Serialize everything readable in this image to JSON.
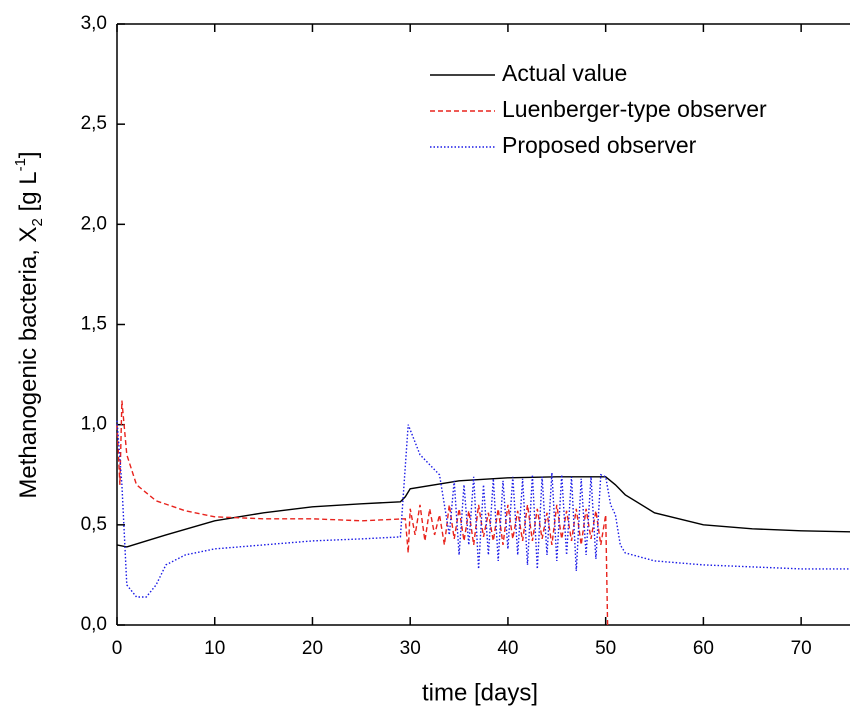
{
  "chart_data": {
    "type": "line",
    "xlabel": "time [days]",
    "ylabel": [
      "Methanogenic bacteria, X",
      "2",
      " [g L",
      "-1",
      "]"
    ],
    "xlim": [
      0,
      75
    ],
    "ylim": [
      0,
      3
    ],
    "xticks": [
      0,
      10,
      20,
      30,
      40,
      50,
      60,
      70
    ],
    "yticks": [
      {
        "value": 0,
        "label": "0,0"
      },
      {
        "value": 0.5,
        "label": "0,5"
      },
      {
        "value": 1,
        "label": "1,0"
      },
      {
        "value": 1.5,
        "label": "1,5"
      },
      {
        "value": 2,
        "label": "2,0"
      },
      {
        "value": 2.5,
        "label": "2,5"
      },
      {
        "value": 3,
        "label": "3,0"
      }
    ],
    "legend": "upper right",
    "series": [
      {
        "name": "Actual value",
        "color": "#000000",
        "dash": "solid",
        "x": [
          0,
          1,
          3,
          5,
          10,
          15,
          20,
          25,
          29,
          29.5,
          30,
          35,
          40,
          45,
          50,
          51,
          52,
          55,
          60,
          65,
          70,
          75
        ],
        "values": [
          0.4,
          0.39,
          0.42,
          0.45,
          0.52,
          0.56,
          0.59,
          0.605,
          0.615,
          0.64,
          0.68,
          0.72,
          0.735,
          0.74,
          0.74,
          0.7,
          0.65,
          0.56,
          0.5,
          0.48,
          0.47,
          0.465
        ]
      },
      {
        "name": "Luenberger-type observer",
        "color": "#e8231d",
        "dash": "dashed",
        "x": [
          0,
          0.3,
          0.5,
          1,
          2,
          4,
          7,
          10,
          15,
          20,
          25,
          29.5,
          29.8,
          30,
          30.5,
          31,
          31.5,
          32,
          32.5,
          33,
          33.5,
          34,
          34.5,
          35,
          35.5,
          36,
          36.5,
          37,
          37.5,
          38,
          38.5,
          39,
          39.5,
          40,
          40.5,
          41,
          41.5,
          42,
          42.5,
          43,
          43.5,
          44,
          44.5,
          45,
          45.5,
          46,
          46.5,
          47,
          47.5,
          48,
          48.5,
          49,
          49.5,
          50,
          50.2
        ],
        "values": [
          1.0,
          0.7,
          1.12,
          0.85,
          0.7,
          0.62,
          0.57,
          0.54,
          0.53,
          0.53,
          0.52,
          0.53,
          0.36,
          0.58,
          0.45,
          0.6,
          0.42,
          0.58,
          0.45,
          0.55,
          0.4,
          0.6,
          0.43,
          0.58,
          0.42,
          0.57,
          0.4,
          0.6,
          0.44,
          0.56,
          0.42,
          0.58,
          0.4,
          0.6,
          0.43,
          0.57,
          0.42,
          0.6,
          0.42,
          0.58,
          0.43,
          0.56,
          0.4,
          0.6,
          0.43,
          0.57,
          0.42,
          0.58,
          0.4,
          0.58,
          0.43,
          0.57,
          0.4,
          0.55,
          0.0
        ]
      },
      {
        "name": "Proposed observer",
        "color": "#1a1ae6",
        "dash": "dotted",
        "x": [
          0,
          0.5,
          1,
          2,
          3,
          4,
          5,
          7,
          10,
          15,
          20,
          25,
          29,
          29.8,
          31,
          33,
          34,
          34.5,
          35,
          35.5,
          36,
          36.5,
          37,
          37.5,
          38,
          38.5,
          39,
          39.5,
          40,
          40.5,
          41,
          41.5,
          42,
          42.5,
          43,
          43.5,
          44,
          44.5,
          45,
          45.5,
          46,
          46.5,
          47,
          47.5,
          48,
          48.5,
          49,
          49.5,
          50,
          50.5,
          51,
          51.5,
          52,
          55,
          60,
          65,
          70,
          75
        ],
        "values": [
          1.02,
          0.7,
          0.2,
          0.14,
          0.14,
          0.2,
          0.3,
          0.35,
          0.38,
          0.4,
          0.42,
          0.43,
          0.44,
          1.0,
          0.85,
          0.75,
          0.45,
          0.72,
          0.35,
          0.7,
          0.4,
          0.74,
          0.28,
          0.7,
          0.35,
          0.73,
          0.32,
          0.72,
          0.38,
          0.74,
          0.35,
          0.73,
          0.3,
          0.75,
          0.28,
          0.74,
          0.35,
          0.76,
          0.32,
          0.75,
          0.35,
          0.74,
          0.27,
          0.73,
          0.35,
          0.74,
          0.33,
          0.75,
          0.74,
          0.6,
          0.55,
          0.4,
          0.36,
          0.32,
          0.3,
          0.29,
          0.28,
          0.28
        ]
      }
    ]
  }
}
